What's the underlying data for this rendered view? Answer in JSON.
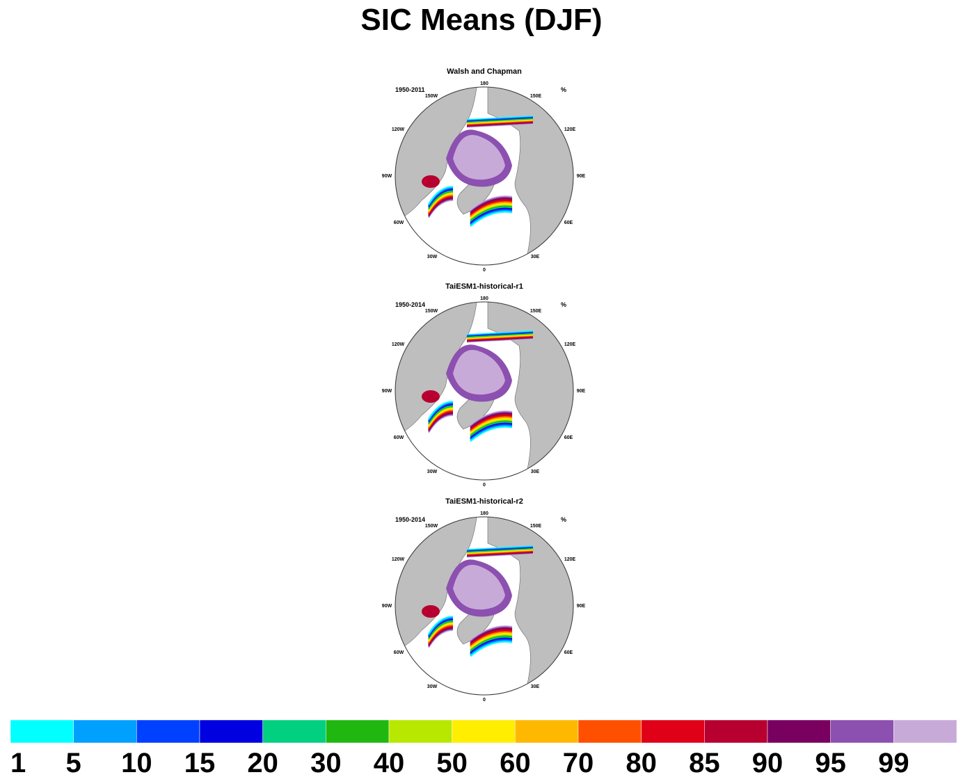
{
  "title": "SIC Means (DJF)",
  "unit": "%",
  "panels": [
    {
      "title": "Walsh and Chapman",
      "period": "1950-2011"
    },
    {
      "title": "TaiESM1-historical-r1",
      "period": "1950-2014"
    },
    {
      "title": "TaiESM1-historical-r2",
      "period": "1950-2014"
    }
  ],
  "lon_labels": {
    "top": "180",
    "bottom": "0",
    "upper_left": "150W",
    "upper_right": "150E",
    "left_upper": "120W",
    "right_upper": "120E",
    "left": "90W",
    "right": "90E",
    "left_lower": "60W",
    "right_lower": "60E",
    "lower_left": "30W",
    "lower_right": "30E"
  },
  "colorbar": {
    "labels": [
      "1",
      "5",
      "10",
      "15",
      "20",
      "30",
      "40",
      "50",
      "60",
      "70",
      "80",
      "85",
      "90",
      "95",
      "99"
    ],
    "colors": [
      "#00ffff",
      "#00a0ff",
      "#0040ff",
      "#0000e0",
      "#00d080",
      "#20b810",
      "#b8e800",
      "#ffee00",
      "#ffb800",
      "#ff5000",
      "#e00018",
      "#b80030",
      "#7a0060",
      "#8c50b0",
      "#c8aad8"
    ]
  },
  "map_colors": {
    "land": "#bebebe",
    "ocean": "#ffffff",
    "ice_core": "#c8aad8",
    "ice_pack": "#8c50b0"
  }
}
